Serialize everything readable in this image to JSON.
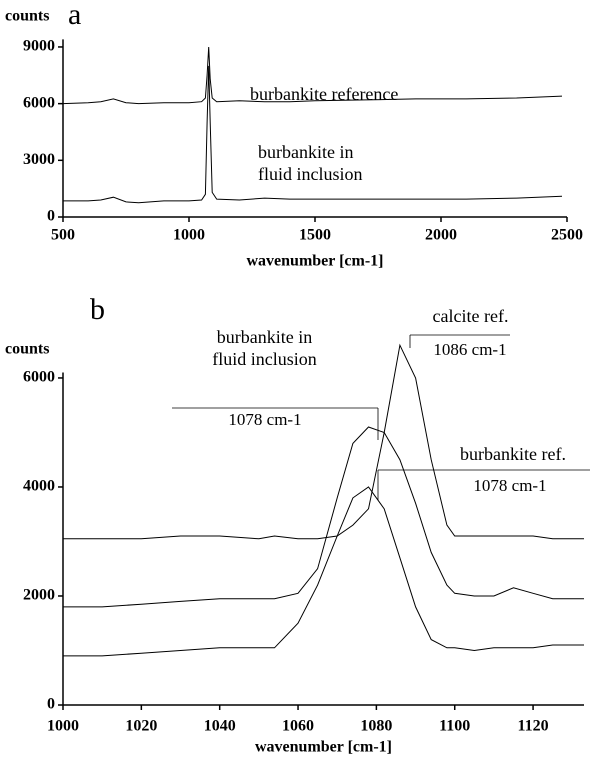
{
  "chart_data": [
    {
      "type": "line",
      "panel_label": "a",
      "y_label": "counts",
      "x_label": "wavenumber [cm-1]",
      "xlim": [
        500,
        2500
      ],
      "xticks": [
        500,
        1000,
        1500,
        2000,
        2500
      ],
      "ylim": [
        0,
        9400
      ],
      "yticks": [
        0,
        3000,
        6000,
        9000
      ],
      "color": "#000000",
      "x": [
        500,
        600,
        650,
        700,
        750,
        800,
        900,
        1000,
        1050,
        1065,
        1072,
        1078,
        1084,
        1092,
        1110,
        1200,
        1300,
        1400,
        1500,
        1700,
        1900,
        2100,
        2300,
        2480
      ],
      "series": [
        {
          "name": "burbankite reference",
          "values": [
            6000,
            6050,
            6100,
            6250,
            6050,
            6000,
            6050,
            6050,
            6100,
            6300,
            7500,
            9000,
            7300,
            6300,
            6100,
            6150,
            6100,
            6100,
            6150,
            6200,
            6250,
            6250,
            6300,
            6400
          ]
        },
        {
          "name": "burbankite in fluid inclusion",
          "values": [
            850,
            850,
            900,
            1050,
            800,
            750,
            850,
            850,
            900,
            1200,
            5000,
            8000,
            5000,
            1300,
            950,
            900,
            1000,
            950,
            950,
            950,
            950,
            950,
            1000,
            1100
          ]
        }
      ]
    },
    {
      "type": "line",
      "panel_label": "b",
      "y_label": "counts",
      "x_label": "wavenumber [cm-1]",
      "xlim": [
        1000,
        1133
      ],
      "xticks": [
        1000,
        1020,
        1040,
        1060,
        1080,
        1100,
        1120
      ],
      "ylim": [
        0,
        6100
      ],
      "yticks": [
        0,
        2000,
        4000,
        6000
      ],
      "color": "#000000",
      "x": [
        1000,
        1010,
        1020,
        1030,
        1040,
        1050,
        1054,
        1060,
        1065,
        1070,
        1074,
        1078,
        1082,
        1086,
        1090,
        1094,
        1098,
        1100,
        1105,
        1110,
        1115,
        1120,
        1125,
        1133
      ],
      "series": [
        {
          "name": "calcite ref.",
          "peak_label": "1086 cm-1",
          "values": [
            3050,
            3050,
            3050,
            3100,
            3100,
            3050,
            3100,
            3050,
            3050,
            3100,
            3300,
            3600,
            5000,
            6600,
            6000,
            4500,
            3300,
            3100,
            3100,
            3100,
            3100,
            3100,
            3050,
            3050
          ]
        },
        {
          "name": "burbankite in fluid inclusion",
          "peak_label": "1078 cm-1",
          "values": [
            1800,
            1800,
            1850,
            1900,
            1950,
            1950,
            1950,
            2050,
            2500,
            3800,
            4800,
            5100,
            5000,
            4500,
            3700,
            2800,
            2200,
            2050,
            2000,
            2000,
            2150,
            2050,
            1950,
            1950
          ]
        },
        {
          "name": "burbankite ref.",
          "peak_label": "1078 cm-1",
          "values": [
            900,
            900,
            950,
            1000,
            1050,
            1050,
            1050,
            1500,
            2200,
            3100,
            3800,
            4000,
            3600,
            2700,
            1800,
            1200,
            1050,
            1050,
            1000,
            1050,
            1050,
            1050,
            1100,
            1100
          ]
        }
      ]
    }
  ]
}
